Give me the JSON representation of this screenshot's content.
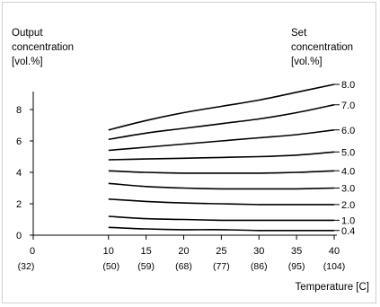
{
  "chart_data": {
    "type": "line",
    "ylabel_left": [
      "Output",
      "concentration",
      "[vol.%]"
    ],
    "ylabel_right": [
      "Set",
      "concentration",
      "[vol.%]"
    ],
    "xlabel": "Temperature [C]",
    "xlim": [
      0,
      40
    ],
    "ylim": [
      0,
      9.6
    ],
    "y_ticks": [
      0,
      2,
      4,
      6,
      8
    ],
    "x_ticks": [
      {
        "value": 0,
        "label": "0",
        "sub": "(32)"
      },
      {
        "value": 10,
        "label": "10",
        "sub": "(50)"
      },
      {
        "value": 15,
        "label": "15",
        "sub": "(59)"
      },
      {
        "value": 20,
        "label": "20",
        "sub": "(68)"
      },
      {
        "value": 25,
        "label": "25",
        "sub": "(77)"
      },
      {
        "value": 30,
        "label": "30",
        "sub": "(86)"
      },
      {
        "value": 35,
        "label": "35",
        "sub": "(95)"
      },
      {
        "value": 40,
        "label": "40",
        "sub": "(104)"
      }
    ],
    "x": [
      10,
      15,
      20,
      25,
      30,
      35,
      40
    ],
    "series": [
      {
        "name": "8.0",
        "values": [
          6.7,
          7.3,
          7.8,
          8.2,
          8.6,
          9.1,
          9.6
        ]
      },
      {
        "name": "7.0",
        "values": [
          6.1,
          6.5,
          6.8,
          7.1,
          7.4,
          7.8,
          8.3
        ]
      },
      {
        "name": "6.0",
        "values": [
          5.4,
          5.6,
          5.8,
          6.0,
          6.2,
          6.4,
          6.7
        ]
      },
      {
        "name": "5.0",
        "values": [
          4.8,
          4.85,
          4.9,
          4.95,
          5.0,
          5.1,
          5.3
        ]
      },
      {
        "name": "4.0",
        "values": [
          4.1,
          4.0,
          3.95,
          3.95,
          3.95,
          4.0,
          4.1
        ]
      },
      {
        "name": "3.0",
        "values": [
          3.3,
          3.1,
          3.0,
          2.95,
          2.95,
          2.95,
          3.0
        ]
      },
      {
        "name": "2.0",
        "values": [
          2.3,
          2.15,
          2.05,
          2.0,
          1.95,
          1.95,
          1.95
        ]
      },
      {
        "name": "1.0",
        "values": [
          1.2,
          1.05,
          1.0,
          0.95,
          0.95,
          0.95,
          0.95
        ]
      },
      {
        "name": "0.4",
        "values": [
          0.5,
          0.4,
          0.35,
          0.35,
          0.3,
          0.3,
          0.3
        ]
      }
    ],
    "grid": false,
    "line_color": "#000000"
  }
}
